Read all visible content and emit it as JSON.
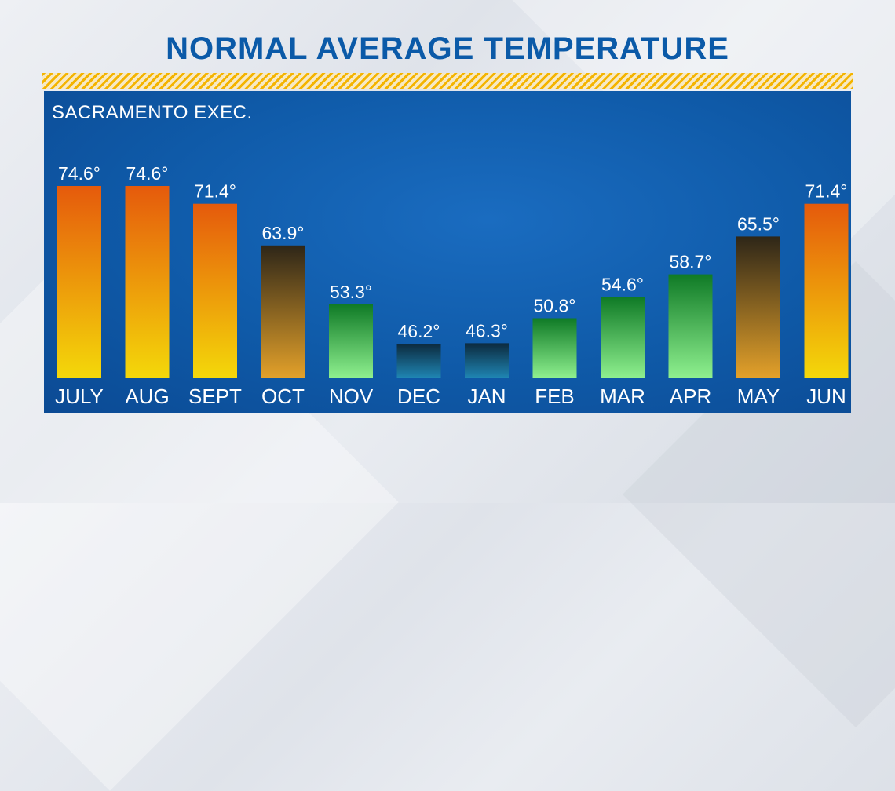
{
  "title": "NORMAL AVERAGE TEMPERATURE",
  "subtitle": "SACRAMENTO EXEC.",
  "chart_data": {
    "type": "bar",
    "title": "NORMAL AVERAGE TEMPERATURE",
    "subtitle": "SACRAMENTO EXEC.",
    "categories": [
      "JULY",
      "AUG",
      "SEPT",
      "OCT",
      "NOV",
      "DEC",
      "JAN",
      "FEB",
      "MAR",
      "APR",
      "MAY",
      "JUN"
    ],
    "values": [
      74.6,
      74.6,
      71.4,
      63.9,
      53.3,
      46.2,
      46.3,
      50.8,
      54.6,
      58.7,
      65.5,
      71.4
    ],
    "labels": [
      "74.6°",
      "74.6°",
      "71.4°",
      "63.9°",
      "53.3°",
      "46.2°",
      "46.3°",
      "50.8°",
      "54.6°",
      "58.7°",
      "65.5°",
      "71.4°"
    ],
    "ylim": [
      40,
      77
    ],
    "grid": false,
    "legend": "none",
    "bar_styles": [
      "hot",
      "hot",
      "hot",
      "warm",
      "cool",
      "cold",
      "cold",
      "cool",
      "cool",
      "cool",
      "warm",
      "hot"
    ],
    "colors": {
      "hot_top": "#e55a0c",
      "hot_bottom": "#f4d80a",
      "warm_top": "#2e2618",
      "warm_bottom": "#e3a12a",
      "cool_top": "#0f7a26",
      "cool_bottom": "#8ff08f",
      "cold_top": "#0c2a3e",
      "cold_bottom": "#1f86b4"
    }
  }
}
